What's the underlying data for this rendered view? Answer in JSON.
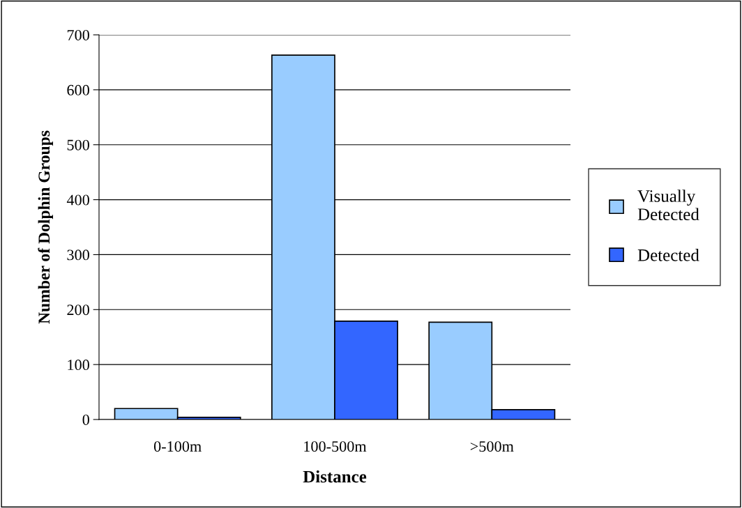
{
  "chart_data": {
    "type": "bar",
    "xlabel": "Distance",
    "ylabel": "Number of Dolphin Groups",
    "categories": [
      "0-100m",
      "100-500m",
      ">500m"
    ],
    "series": [
      {
        "name": "Visually Detected",
        "color": "#99ccff",
        "values": [
          20,
          663,
          177
        ]
      },
      {
        "name": "Detected",
        "color": "#3366ff",
        "values": [
          4,
          179,
          18
        ]
      }
    ],
    "ylim": [
      0,
      700
    ],
    "yticks": [
      0,
      100,
      200,
      300,
      400,
      500,
      600,
      700
    ],
    "grid": "y",
    "legend": "right"
  }
}
